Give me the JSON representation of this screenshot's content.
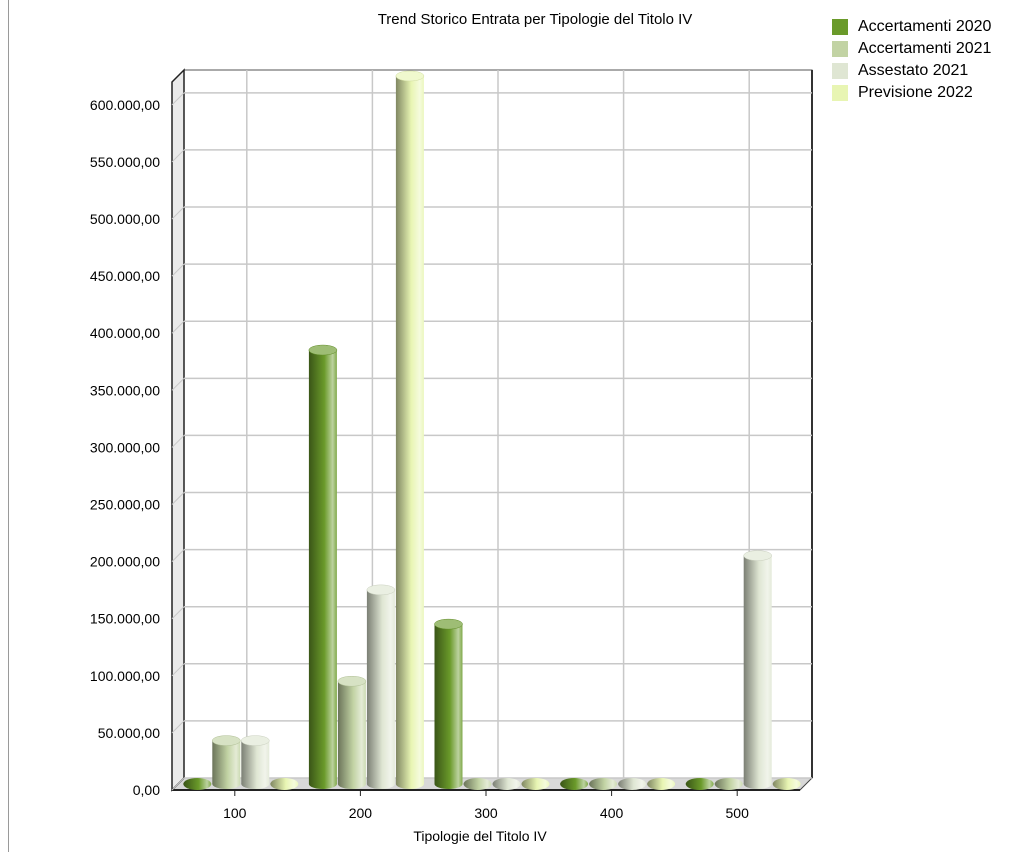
{
  "chart_data": {
    "type": "bar",
    "title": "Trend Storico Entrata per Tipologie del Titolo IV",
    "xlabel": "Tipologie del Titolo IV",
    "ylabel": "",
    "categories": [
      "100",
      "200",
      "300",
      "400",
      "500"
    ],
    "y_ticks": [
      "0,00",
      "50.000,00",
      "100.000,00",
      "150.000,00",
      "200.000,00",
      "250.000,00",
      "300.000,00",
      "350.000,00",
      "400.000,00",
      "450.000,00",
      "500.000,00",
      "550.000,00",
      "600.000,00"
    ],
    "ylim": [
      0,
      620000
    ],
    "grid": true,
    "legend_position": "top-right",
    "series": [
      {
        "name": "Accertamenti 2020",
        "color": "#6a9a2a",
        "values": [
          0,
          380000,
          140000,
          0,
          0
        ]
      },
      {
        "name": "Accertamenti 2021",
        "color": "#c2d3a4",
        "values": [
          38000,
          90000,
          0,
          0,
          0
        ]
      },
      {
        "name": "Assestato 2021",
        "color": "#dfe6d3",
        "values": [
          38000,
          170000,
          0,
          0,
          200000
        ]
      },
      {
        "name": "Previsione 2022",
        "color": "#e8f5b3",
        "values": [
          0,
          620000,
          0,
          0,
          0
        ]
      }
    ]
  }
}
